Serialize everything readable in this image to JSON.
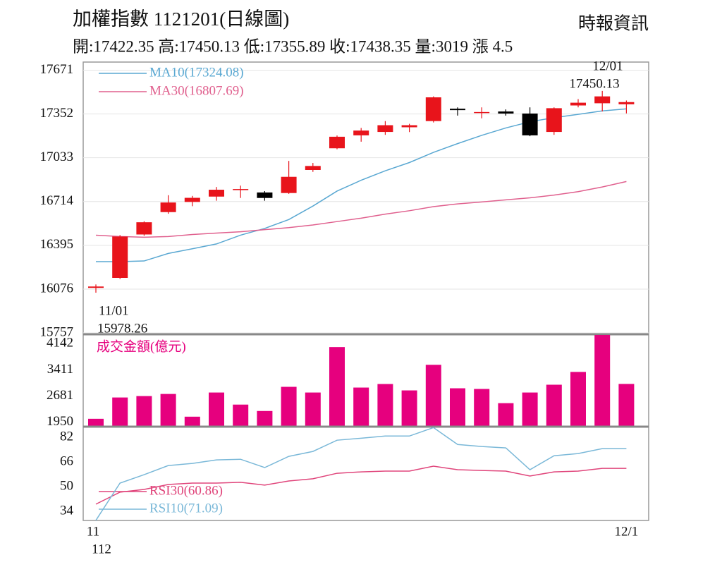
{
  "chart_data": [
    {
      "type": "candlestick",
      "title": "加權指數 1121201(日線圖)",
      "source": "時報資訊",
      "subtitle": "開:17422.35 高:17450.13 低:17355.89 收:17438.35 量:3019 漲 4.5",
      "categories": [
        "11",
        null,
        null,
        null,
        null,
        null,
        null,
        null,
        null,
        null,
        null,
        null,
        null,
        null,
        null,
        null,
        null,
        null,
        null,
        null,
        null,
        null,
        "12/1"
      ],
      "x_sublabel": "112",
      "open": [
        16085,
        16158,
        16474,
        16637,
        16711,
        16750,
        16800,
        16780,
        16776,
        16944,
        17102,
        17196,
        17221,
        17255,
        17300,
        17390,
        17365,
        17370,
        17355,
        17221,
        17414,
        17430,
        17422.35
      ],
      "high": [
        16110,
        16470,
        16570,
        16760,
        16755,
        16820,
        16830,
        16790,
        17010,
        16995,
        17195,
        17250,
        17300,
        17280,
        17480,
        17400,
        17400,
        17385,
        17400,
        17400,
        17460,
        17520,
        17450.13
      ],
      "low": [
        16050,
        16150,
        16465,
        16625,
        16680,
        16720,
        16740,
        16720,
        16770,
        16930,
        17095,
        17150,
        17200,
        17220,
        17290,
        17340,
        17320,
        17340,
        17190,
        17200,
        17400,
        17370,
        17355.89
      ],
      "close": [
        16095,
        16459,
        16563,
        16707,
        16741,
        16800,
        16805,
        16740,
        16894,
        16973,
        17186,
        17231,
        17270,
        17270,
        17473,
        17380,
        17366,
        17355,
        17196,
        17394,
        17434,
        17480,
        17438.35
      ],
      "up_color": "#e8141b",
      "down_color": "#000000",
      "series": [
        {
          "name": "MA10(17324.08)",
          "color": "#5aa8d2",
          "values": [
            16276,
            16276,
            16281,
            16336,
            16370,
            16405,
            16469,
            16518,
            16583,
            16681,
            16790,
            16869,
            16938,
            16998,
            17072,
            17136,
            17196,
            17250,
            17295,
            17325,
            17349,
            17374,
            17389
          ]
        },
        {
          "name": "MA30(16807.69)",
          "color": "#e0608e",
          "values": [
            16469,
            16459,
            16454,
            16459,
            16474,
            16484,
            16494,
            16509,
            16524,
            16543,
            16568,
            16593,
            16622,
            16647,
            16677,
            16697,
            16711,
            16726,
            16741,
            16761,
            16786,
            16820,
            16860
          ]
        }
      ],
      "annotations": [
        "12/01",
        "17450.13",
        "11/01",
        "15978.26"
      ],
      "ylim": [
        15747,
        17730
      ],
      "yticks": [
        15757,
        16076,
        16395,
        16714,
        17033,
        17352,
        17671
      ],
      "grid": true
    },
    {
      "type": "bar",
      "label": "成交金額(億元)",
      "color": "#e6007e",
      "values": [
        2049,
        2642,
        2681,
        2740,
        2108,
        2780,
        2444,
        2266,
        2938,
        2780,
        4044,
        2918,
        3017,
        2839,
        3551,
        2898,
        2879,
        2484,
        2780,
        2997,
        3353,
        4380,
        3019
      ],
      "ylim": [
        1830,
        4400
      ],
      "yticks": [
        1950,
        2681,
        3411,
        4142
      ]
    },
    {
      "type": "line",
      "series": [
        {
          "name": "RSI30(60.86)",
          "color": "#e0457b",
          "values": [
            38.6,
            46.4,
            48.2,
            51.4,
            52.3,
            52.3,
            52.8,
            51,
            53.7,
            55.1,
            58.7,
            59.6,
            60.1,
            60.1,
            63.3,
            61,
            60.5,
            60.1,
            56.9,
            59.6,
            60.1,
            61.9,
            61.9
          ]
        },
        {
          "name": "RSI10(71.09)",
          "color": "#7ab8d8",
          "values": [
            28.1,
            52.3,
            57.8,
            63.7,
            65.1,
            67.4,
            67.8,
            62.4,
            69.7,
            72.9,
            80.2,
            81.5,
            82.9,
            82.9,
            88.4,
            77.4,
            76.1,
            75.2,
            61,
            70.1,
            71.5,
            74.7,
            74.7
          ]
        }
      ],
      "ylim": [
        28,
        89
      ],
      "yticks": [
        34,
        50,
        66,
        82
      ]
    }
  ]
}
